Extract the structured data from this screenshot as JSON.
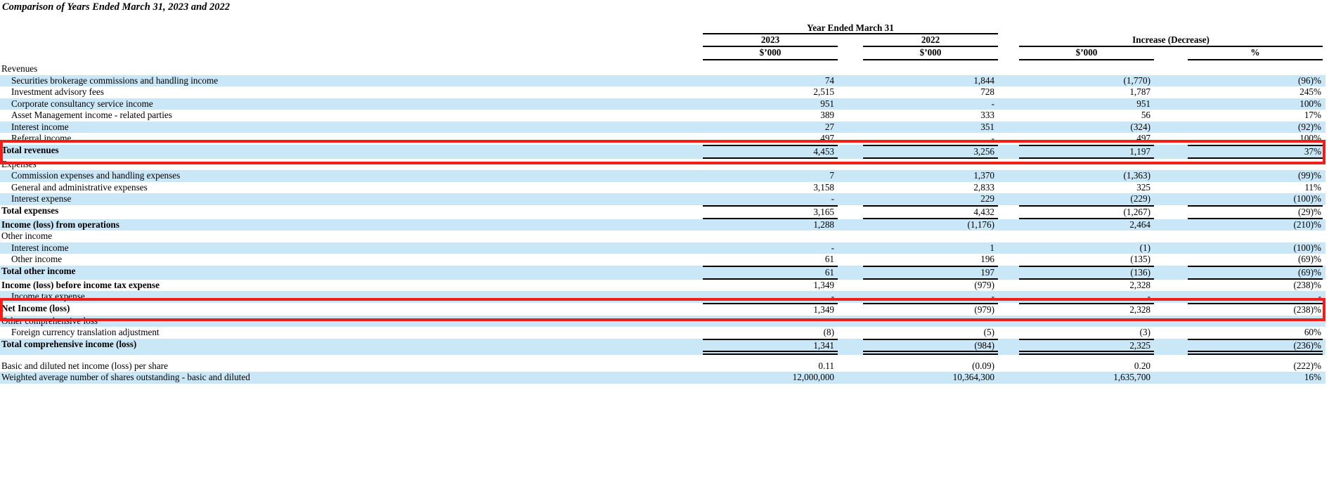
{
  "title": "Comparison of Years Ended March 31, 2023 and 2022",
  "header": {
    "year_group": "Year Ended March 31",
    "col_2023": "2023",
    "col_2022": "2022",
    "increase_group": "Increase (Decrease)",
    "unit_2023": "$’000",
    "unit_2022": "$’000",
    "unit_increase": "$’000",
    "unit_percent": "%"
  },
  "colors": {
    "row_highlight": "#cae7f8",
    "annotation_box": "#ee2019",
    "rule_lines": "#000000"
  },
  "table": {
    "rows": [
      {
        "label": "Revenues",
        "bg": "w"
      },
      {
        "label": "Securities brokerage commissions and handling income",
        "indent": 1,
        "bg": "b",
        "a": "74",
        "b": "1,844",
        "c": "(1,770)",
        "d": "(96)%"
      },
      {
        "label": "Investment advisory fees",
        "indent": 1,
        "bg": "w",
        "a": "2,515",
        "b": "728",
        "c": "1,787",
        "d": "245%"
      },
      {
        "label": "Corporate consultancy service income",
        "indent": 1,
        "bg": "b",
        "a": "951",
        "b": "-",
        "c": "951",
        "d": "100%"
      },
      {
        "label": "Asset Management income - related parties",
        "indent": 1,
        "bg": "w",
        "a": "389",
        "b": "333",
        "c": "56",
        "d": "17%"
      },
      {
        "label": "Interest income",
        "indent": 1,
        "bg": "b",
        "a": "27",
        "b": "351",
        "c": "(324)",
        "d": "(92)%"
      },
      {
        "label": "Referral income",
        "indent": 1,
        "bg": "w",
        "a": "497",
        "b": "-",
        "c": "497",
        "d": "100%"
      },
      {
        "label": "Total revenues",
        "bold": 1,
        "bg": "b",
        "a": "4,453",
        "b": "3,256",
        "c": "1,197",
        "d": "37%",
        "borders": "tb",
        "boxed": 1
      },
      {
        "label": "Expenses",
        "bg": "w"
      },
      {
        "label": "Commission expenses and handling expenses",
        "indent": 1,
        "bg": "b",
        "a": "7",
        "b": "1,370",
        "c": "(1,363)",
        "d": "(99)%"
      },
      {
        "label": "General and administrative expenses",
        "indent": 1,
        "bg": "w",
        "a": "3,158",
        "b": "2,833",
        "c": "325",
        "d": "11%"
      },
      {
        "label": "Interest expense",
        "indent": 1,
        "bg": "b",
        "a": "-",
        "b": "229",
        "c": "(229)",
        "d": "(100)%"
      },
      {
        "label": "Total expenses",
        "bold": 1,
        "bg": "w",
        "a": "3,165",
        "b": "4,432",
        "c": "(1,267)",
        "d": "(29)%",
        "borders": "tb"
      },
      {
        "label": "Income (loss) from operations",
        "bold": 1,
        "bg": "b",
        "a": "1,288",
        "b": "(1,176)",
        "c": "2,464",
        "d": "(210)%"
      },
      {
        "label": "Other income",
        "bg": "w"
      },
      {
        "label": "Interest income",
        "indent": 1,
        "bg": "b",
        "a": "-",
        "b": "1",
        "c": "(1)",
        "d": "(100)%"
      },
      {
        "label": "Other income",
        "indent": 1,
        "bg": "w",
        "a": "61",
        "b": "196",
        "c": "(135)",
        "d": "(69)%"
      },
      {
        "label": "Total other income",
        "bold": 1,
        "bg": "b",
        "a": "61",
        "b": "197",
        "c": "(136)",
        "d": "(69)%",
        "borders": "tb"
      },
      {
        "label": "Income (loss) before income tax expense",
        "bold": 1,
        "bg": "w",
        "a": "1,349",
        "b": "(979)",
        "c": "2,328",
        "d": "(238)%"
      },
      {
        "label": "Income tax expense",
        "indent": 1,
        "bg": "b",
        "a": "-",
        "b": "-",
        "c": "-",
        "d": "-"
      },
      {
        "label": "Net Income (loss)",
        "bold": 1,
        "bg": "w",
        "a": "1,349",
        "b": "(979)",
        "c": "2,328",
        "d": "(238)%",
        "borders": "t",
        "boxed": 1
      },
      {
        "label": "Other comprehensive loss",
        "bg": "b"
      },
      {
        "label": "Foreign currency translation adjustment",
        "indent": 1,
        "bg": "w",
        "a": "(8)",
        "b": "(5)",
        "c": "(3)",
        "d": "60%"
      },
      {
        "label": "Total comprehensive income (loss)",
        "bold": 1,
        "bg": "b",
        "a": "1,341",
        "b": "(984)",
        "c": "2,325",
        "d": "(236)%",
        "borders": "t-db"
      },
      {
        "label": "",
        "bg": "w",
        "spacer": 1
      },
      {
        "label": "Basic and diluted net income (loss) per share",
        "bg": "w",
        "a": "0.11",
        "b": "(0.09)",
        "c": "0.20",
        "d": "(222)%"
      },
      {
        "label": "Weighted average number of shares outstanding - basic and diluted",
        "bg": "b",
        "a": "12,000,000",
        "b": "10,364,300",
        "c": "1,635,700",
        "d": "16%"
      }
    ]
  }
}
